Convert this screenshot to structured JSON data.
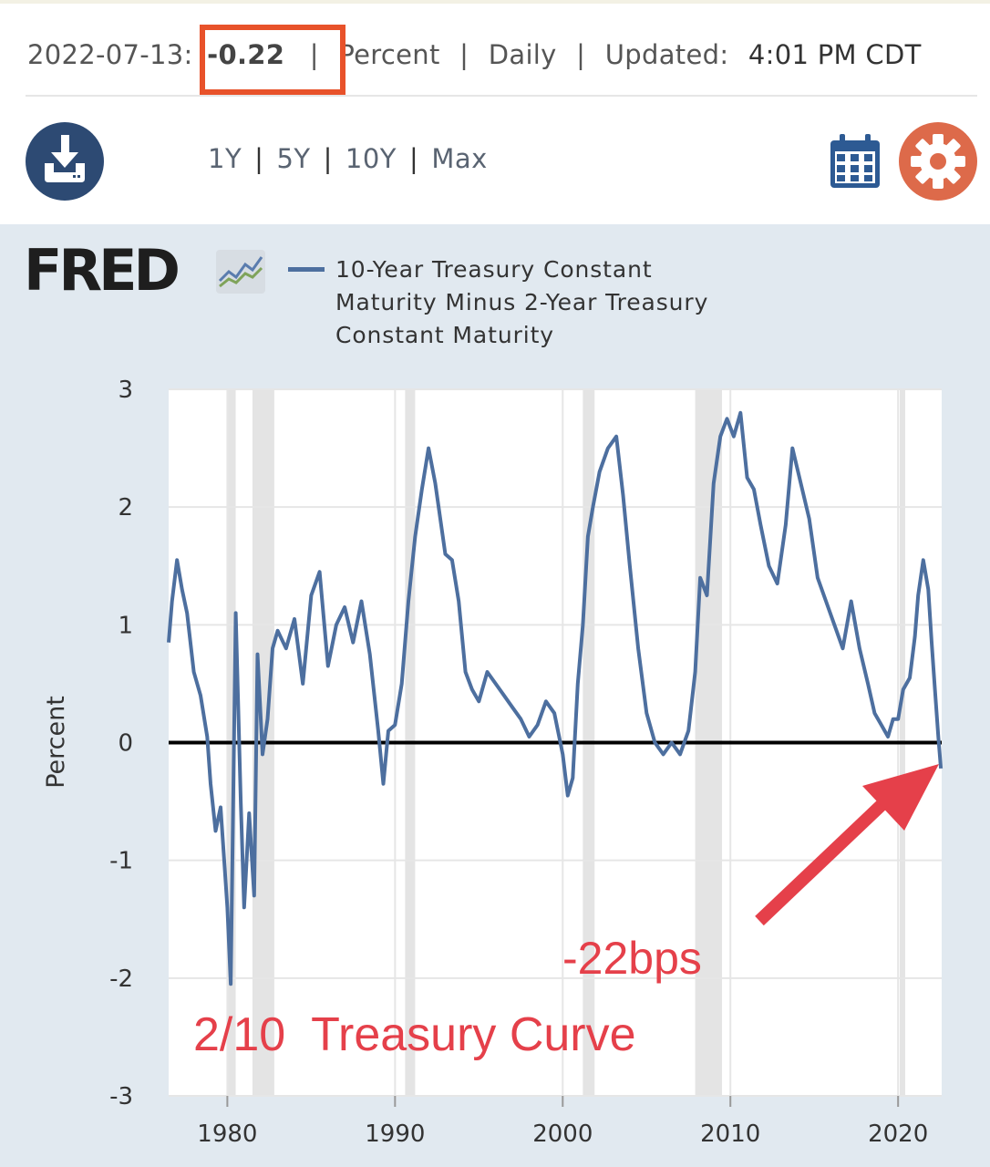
{
  "header": {
    "date": "2022-07-13",
    "value": "-0.22",
    "units": "Percent",
    "frequency": "Daily",
    "updated_label": "Updated:",
    "updated_time": "4:01 PM CDT"
  },
  "toolbar": {
    "ranges": [
      "1Y",
      "5Y",
      "10Y",
      "Max"
    ],
    "download_icon": "download-icon",
    "calendar_icon": "calendar-icon",
    "settings_icon": "gear-icon"
  },
  "brand": {
    "logo_text": "FRED"
  },
  "colors": {
    "series": "#4d6f9f",
    "highlight_box": "#e8522a",
    "annotation": "#e5404a",
    "download_button": "#2d4a73",
    "settings_button": "#dd6a4a",
    "recession": "#e4e4e4"
  },
  "chart_data": {
    "type": "line",
    "title": "",
    "xlabel": "",
    "ylabel": "Percent",
    "xlim": [
      1976.5,
      2022.6
    ],
    "ylim": [
      -3,
      3
    ],
    "x_ticks": [
      "1980",
      "1990",
      "2000",
      "2010",
      "2020"
    ],
    "y_ticks": [
      "3",
      "2",
      "1",
      "0",
      "-1",
      "-2",
      "-3"
    ],
    "grid": true,
    "legend": "top",
    "recessions": [
      [
        1980.0,
        1980.5
      ],
      [
        1981.5,
        1982.8
      ],
      [
        1990.6,
        1991.2
      ],
      [
        2001.2,
        2001.9
      ],
      [
        2007.9,
        2009.5
      ],
      [
        2020.1,
        2020.35
      ]
    ],
    "zero_line": 0,
    "series": [
      {
        "name": "10-Year Treasury Constant Maturity Minus 2-Year Treasury Constant Maturity",
        "x": [
          1976.5,
          1976.7,
          1977.0,
          1977.3,
          1977.6,
          1978.0,
          1978.4,
          1978.8,
          1979.0,
          1979.3,
          1979.6,
          1980.0,
          1980.2,
          1980.5,
          1980.8,
          1981.0,
          1981.3,
          1981.6,
          1981.8,
          1982.1,
          1982.4,
          1982.7,
          1983.0,
          1983.5,
          1984.0,
          1984.5,
          1985.0,
          1985.5,
          1986.0,
          1986.5,
          1987.0,
          1987.5,
          1988.0,
          1988.5,
          1989.0,
          1989.3,
          1989.6,
          1990.0,
          1990.4,
          1990.8,
          1991.2,
          1991.6,
          1992.0,
          1992.4,
          1992.7,
          1993.0,
          1993.4,
          1993.8,
          1994.2,
          1994.6,
          1995.0,
          1995.5,
          1996.0,
          1996.5,
          1997.0,
          1997.5,
          1998.0,
          1998.5,
          1999.0,
          1999.5,
          2000.0,
          2000.3,
          2000.6,
          2000.9,
          2001.2,
          2001.5,
          2001.8,
          2002.2,
          2002.7,
          2003.2,
          2003.6,
          2004.0,
          2004.5,
          2005.0,
          2005.5,
          2006.0,
          2006.5,
          2007.0,
          2007.5,
          2007.9,
          2008.2,
          2008.6,
          2009.0,
          2009.4,
          2009.8,
          2010.2,
          2010.6,
          2011.0,
          2011.4,
          2011.8,
          2012.3,
          2012.8,
          2013.3,
          2013.7,
          2014.2,
          2014.7,
          2015.2,
          2015.7,
          2016.2,
          2016.7,
          2017.2,
          2017.7,
          2018.2,
          2018.6,
          2019.0,
          2019.4,
          2019.7,
          2020.0,
          2020.3,
          2020.7,
          2021.0,
          2021.2,
          2021.5,
          2021.8,
          2022.0,
          2022.2,
          2022.4,
          2022.55
        ],
        "y": [
          0.85,
          1.2,
          1.55,
          1.3,
          1.1,
          0.6,
          0.4,
          0.05,
          -0.35,
          -0.75,
          -0.55,
          -1.4,
          -2.05,
          1.1,
          -0.5,
          -1.4,
          -0.6,
          -1.3,
          0.75,
          -0.1,
          0.2,
          0.8,
          0.95,
          0.8,
          1.05,
          0.5,
          1.25,
          1.45,
          0.65,
          1.0,
          1.15,
          0.85,
          1.2,
          0.75,
          0.1,
          -0.35,
          0.1,
          0.15,
          0.5,
          1.2,
          1.75,
          2.15,
          2.5,
          2.2,
          1.9,
          1.6,
          1.55,
          1.2,
          0.6,
          0.45,
          0.35,
          0.6,
          0.5,
          0.4,
          0.3,
          0.2,
          0.05,
          0.15,
          0.35,
          0.25,
          -0.1,
          -0.45,
          -0.3,
          0.5,
          1.0,
          1.75,
          2.0,
          2.3,
          2.5,
          2.6,
          2.1,
          1.5,
          0.8,
          0.25,
          0.0,
          -0.1,
          0.0,
          -0.1,
          0.1,
          0.6,
          1.4,
          1.25,
          2.2,
          2.6,
          2.75,
          2.6,
          2.8,
          2.25,
          2.15,
          1.85,
          1.5,
          1.35,
          1.85,
          2.5,
          2.2,
          1.9,
          1.4,
          1.2,
          1.0,
          0.8,
          1.2,
          0.8,
          0.5,
          0.25,
          0.15,
          0.05,
          0.2,
          0.2,
          0.45,
          0.55,
          0.9,
          1.25,
          1.55,
          1.3,
          0.85,
          0.45,
          0.05,
          -0.22
        ]
      }
    ]
  },
  "annotations": {
    "bps_label": "-22bps",
    "curve_label": "2/10  Treasury Curve"
  }
}
